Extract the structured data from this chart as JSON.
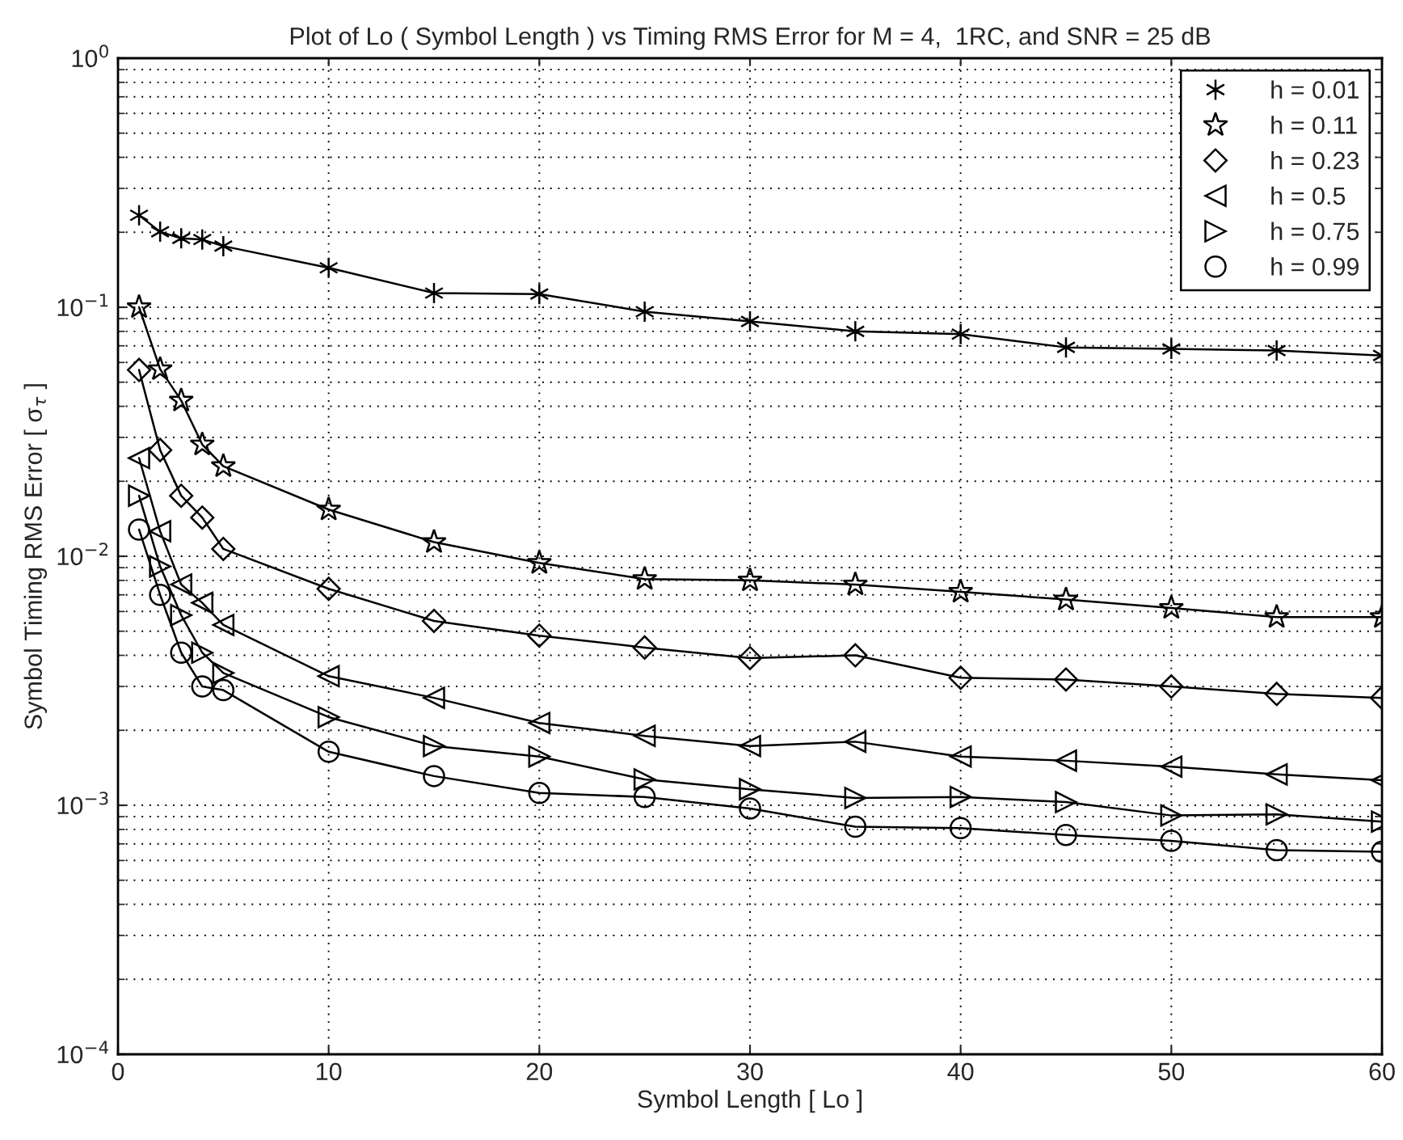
{
  "chart_data": {
    "type": "line",
    "title": "Plot of Lo ( Symbol Length ) vs Timing RMS Error for M = 4,  1RC, and SNR = 25 dB",
    "xlabel": "Symbol Length [ Lo ]",
    "ylabel": "Symbol Timing RMS Error [ σ$_{τ}$ ]",
    "x": [
      1,
      2,
      3,
      4,
      5,
      10,
      15,
      20,
      25,
      30,
      35,
      40,
      45,
      50,
      55,
      60
    ],
    "series": [
      {
        "name": "h = 0.01",
        "color": "#000000",
        "marker": "cross",
        "values": [
          0.234,
          0.201,
          0.189,
          0.187,
          0.176,
          0.144,
          0.114,
          0.113,
          0.096,
          0.0877,
          0.08,
          0.078,
          0.069,
          0.068,
          0.067,
          0.064
        ]
      },
      {
        "name": "h = 0.11",
        "color": "#000000",
        "marker": "star",
        "values": [
          0.1,
          0.0564,
          0.0422,
          0.0281,
          0.023,
          0.0154,
          0.0114,
          0.0094,
          0.0081,
          0.008,
          0.0077,
          0.0072,
          0.0067,
          0.0062,
          0.0057,
          0.0057
        ]
      },
      {
        "name": "h = 0.23",
        "color": "#000000",
        "marker": "diamond",
        "values": [
          0.056,
          0.0267,
          0.0175,
          0.0143,
          0.0107,
          0.0074,
          0.0055,
          0.0048,
          0.0043,
          0.0039,
          0.004,
          0.00325,
          0.0032,
          0.003,
          0.0028,
          0.0027
        ]
      },
      {
        "name": "h = 0.5",
        "color": "#000000",
        "marker": "triangle-left",
        "values": [
          0.0248,
          0.0126,
          0.0077,
          0.0065,
          0.0053,
          0.0033,
          0.0027,
          0.00214,
          0.0019,
          0.00173,
          0.0018,
          0.00157,
          0.00151,
          0.00143,
          0.00133,
          0.00126
        ]
      },
      {
        "name": "h = 0.75",
        "color": "#000000",
        "marker": "triangle-right",
        "values": [
          0.0175,
          0.0091,
          0.0058,
          0.0041,
          0.0034,
          0.00226,
          0.00173,
          0.00157,
          0.00127,
          0.00116,
          0.00107,
          0.00108,
          0.00103,
          0.00091,
          0.00092,
          0.00086
        ]
      },
      {
        "name": "h = 0.99",
        "color": "#000000",
        "marker": "circle",
        "values": [
          0.0128,
          0.007,
          0.0041,
          0.003,
          0.0029,
          0.00164,
          0.00131,
          0.00112,
          0.00108,
          0.00097,
          0.00082,
          0.00081,
          0.00076,
          0.00072,
          0.00066,
          0.00065
        ]
      }
    ],
    "log": "y",
    "xlim": [
      0,
      60
    ],
    "xticks": [
      0,
      10,
      20,
      30,
      40,
      50,
      60
    ],
    "ylim": [
      0.0001,
      1
    ],
    "yticks": [
      {
        "value": 0.0001,
        "label": "10$^{−4}$"
      },
      {
        "value": 0.001,
        "label": "10$^{−3}$"
      },
      {
        "value": 0.01,
        "label": "10$^{−2}$"
      },
      {
        "value": 0.1,
        "label": "10$^{−1}$"
      },
      {
        "value": 1,
        "label": "10$^{0}$"
      }
    ],
    "grid": true,
    "legend": "top right",
    "line_style": "solid"
  }
}
